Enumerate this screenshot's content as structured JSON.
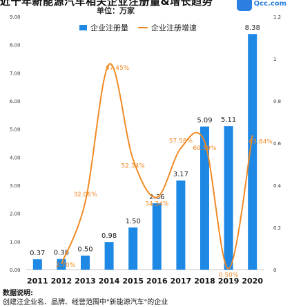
{
  "header": {
    "title": "近十年新能源汽车相关企业注册量&增长趋势",
    "unit": "单位：万家",
    "logo_text": "Qcc.com"
  },
  "notes": {
    "heading": "数据说明:",
    "line1": "创建注企业名、品牌、经营范围中\"新能源汽车\"的企业"
  },
  "chart_data": {
    "type": "bar",
    "categories": [
      "2011",
      "2012",
      "2013",
      "2014",
      "2015",
      "2016",
      "2017",
      "2018",
      "2019",
      "2020"
    ],
    "series": [
      {
        "name": "企业注册量",
        "type": "bar",
        "axis": "left",
        "color": "#1e88e5",
        "values": [
          0.37,
          0.38,
          0.5,
          0.98,
          1.5,
          2.36,
          3.17,
          5.09,
          5.11,
          8.38
        ],
        "labels": [
          "0.37",
          "0.38",
          "0.50",
          "0.98",
          "1.50",
          "2.36",
          "3.17",
          "5.09",
          "5.11",
          "8.38"
        ]
      },
      {
        "name": "企业注册增速",
        "type": "line",
        "axis": "right",
        "color": "#f08a24",
        "values": [
          null,
          0.027,
          0.3206,
          0.9745,
          0.5234,
          0.3434,
          0.5758,
          0.6059,
          0.005,
          0.6384
        ],
        "labels": [
          null,
          "2.70%",
          "32.06%",
          "97.45%",
          "52.34%",
          "34.34%",
          "57.58%",
          "60.59%",
          "0.50%",
          "63.84%"
        ]
      }
    ],
    "yaxis_left": {
      "range": [
        0,
        9
      ],
      "ticks": [
        "0.00",
        "1.00",
        "2.00",
        "3.00",
        "4.00",
        "5.00",
        "6.00",
        "7.00",
        "8.00",
        "9.00"
      ]
    },
    "yaxis_right": {
      "range": [
        0,
        1.2
      ],
      "ticks": [
        "0",
        "0.2",
        "0.4",
        "0.6",
        "0.8",
        "1",
        "1.2"
      ]
    },
    "legend_position": "top-center",
    "grid": false
  }
}
